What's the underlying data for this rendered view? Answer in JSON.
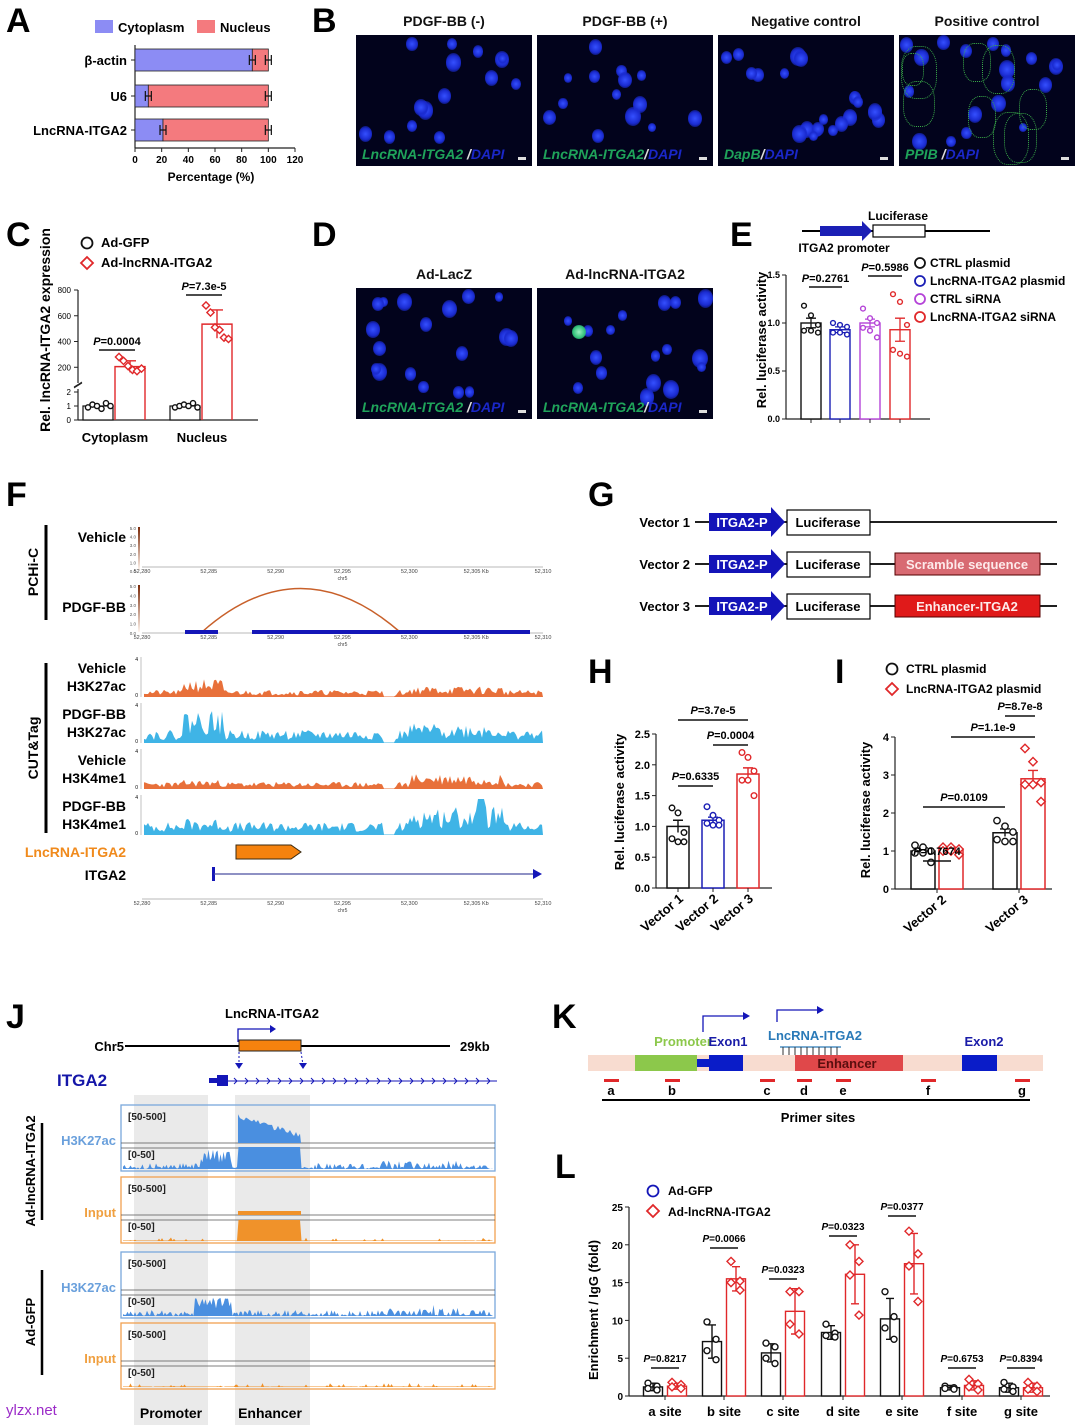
{
  "panels": {
    "A": {
      "label": "A"
    },
    "B": {
      "label": "B"
    },
    "C": {
      "label": "C"
    },
    "D": {
      "label": "D"
    },
    "E": {
      "label": "E"
    },
    "F": {
      "label": "F"
    },
    "G": {
      "label": "G"
    },
    "H": {
      "label": "H"
    },
    "I": {
      "label": "I"
    },
    "J": {
      "label": "J"
    },
    "K": {
      "label": "K"
    },
    "L": {
      "label": "L"
    }
  },
  "colors": {
    "cytoplasm": "#8c8cf4",
    "nucleus": "#f47a7e",
    "red": "#e0282a",
    "blue": "#1b1fb5",
    "purple": "#b544d8",
    "orange_track": "#e8703a",
    "cyan_track": "#3fb4e6",
    "lnc_orange": "#f08a1c",
    "itga2_blue": "#0f1fa8",
    "h3k27ac_j": "#4a8fe0",
    "input_j": "#f0922a",
    "promoter_green": "#8cc84b",
    "enhancer_red": "#e0484a",
    "k_bg": "#f8dcd0"
  },
  "B": {
    "images": [
      {
        "title": "PDGF-BB (-)",
        "probe": "LncRNA-ITGA2",
        "sep": " /",
        "stain": "DAPI"
      },
      {
        "title": "PDGF-BB (+)",
        "probe": "LncRNA-ITGA2",
        "sep": "/",
        "stain": "DAPI"
      },
      {
        "title": "Negative control",
        "probe": "DapB",
        "sep": "/",
        "stain": "DAPI"
      },
      {
        "title": "Positive control",
        "probe": "PPIB",
        "sep": " /",
        "stain": "DAPI"
      }
    ]
  },
  "D": {
    "images": [
      {
        "title": "Ad-LacZ",
        "probe": "LncRNA-ITGA2",
        "sep": " /",
        "stain": "DAPI"
      },
      {
        "title": "Ad-lncRNA-ITGA2",
        "probe": "LncRNA-ITGA2",
        "sep": "/",
        "stain": "DAPI"
      }
    ]
  },
  "E": {
    "construct": {
      "luciferase": "Luciferase",
      "promoter": "ITGA2 promoter"
    }
  },
  "F": {
    "pchic_group": "PCHi-C",
    "cuttag_group": "CUT&Tag",
    "pchic_tracks": [
      "Vehicle",
      "PDGF-BB"
    ],
    "colorbar_ticks": [
      "5.0",
      "4.0",
      "3.0",
      "2.0",
      "1.0",
      "0.0"
    ],
    "genomic_ticks": [
      "52,280",
      "52,285",
      "52,290",
      "52,295",
      "52,300",
      "52,305 Kb",
      "52,310"
    ],
    "chrom": "chr5",
    "tracks": [
      {
        "line1": "Vehicle",
        "line2": "H3K27ac",
        "ymax": "4",
        "ymin": "0"
      },
      {
        "line1": "PDGF-BB",
        "line2": "H3K27ac",
        "ymax": "4",
        "ymin": "0"
      },
      {
        "line1": "Vehicle",
        "line2": "H3K4me1",
        "ymax": "4",
        "ymin": "0"
      },
      {
        "line1": "PDGF-BB",
        "line2": "H3K4me1",
        "ymax": "4",
        "ymin": "0"
      }
    ],
    "lnc_label": "LncRNA-ITGA2",
    "gene_label": "ITGA2"
  },
  "G": {
    "vectors": [
      {
        "name": "Vector 1",
        "promoter": "ITGA2-P",
        "reporter": "Luciferase",
        "insert": ""
      },
      {
        "name": "Vector 2",
        "promoter": "ITGA2-P",
        "reporter": "Luciferase",
        "insert": "Scramble sequence"
      },
      {
        "name": "Vector 3",
        "promoter": "ITGA2-P",
        "reporter": "Luciferase",
        "insert": "Enhancer-ITGA2"
      }
    ]
  },
  "J": {
    "chrom": "Chr5",
    "span": "29kb",
    "lnc": "LncRNA-ITGA2",
    "gene": "ITGA2",
    "groups": [
      "Ad-lncRNA-ITGA2",
      "Ad-GFP"
    ],
    "track_names": [
      "H3K27ac",
      "Input"
    ],
    "ranges": [
      "[50-500]",
      "[0-50]"
    ],
    "regions": [
      "Promoter",
      "Enhancer"
    ]
  },
  "K": {
    "promoter": "Promoter",
    "exon1": "Exon1",
    "lnc": "LncRNA-ITGA2",
    "enhancer": "Enhancer",
    "exon2": "Exon2",
    "sites": [
      "a",
      "b",
      "c",
      "d",
      "e",
      "f",
      "g"
    ],
    "primer_label": "Primer sites"
  },
  "watermark": "ylzx.net",
  "chart_data": [
    {
      "id": "A",
      "type": "bar",
      "orientation": "horizontal",
      "stacked": true,
      "categories": [
        "β-actin",
        "U6",
        "LncRNA-ITGA2"
      ],
      "series": [
        {
          "name": "Cytoplasm",
          "values": [
            88,
            10,
            21
          ]
        },
        {
          "name": "Nucleus",
          "values": [
            12,
            90,
            79
          ]
        }
      ],
      "xlabel": "Percentage (%)",
      "xlim": [
        0,
        120
      ],
      "xticks": [
        "0",
        "20",
        "40",
        "60",
        "80",
        "100",
        "120"
      ],
      "legend": "top"
    },
    {
      "id": "C",
      "type": "bar",
      "categories": [
        "Cytoplasm",
        "Nucleus"
      ],
      "series": [
        {
          "name": "Ad-GFP",
          "values": [
            1.0,
            1.0
          ],
          "points": [
            [
              0.9,
              1.1,
              1.0,
              0.8,
              1.2,
              1.0
            ],
            [
              0.9,
              1.0,
              1.1,
              1.0,
              1.2,
              0.9
            ]
          ]
        },
        {
          "name": "Ad-lncRNA-ITGA2",
          "values": [
            205,
            535
          ],
          "sd": [
            45,
            110
          ],
          "points": [
            [
              280,
              250,
              210,
              180,
              170,
              190
            ],
            [
              680,
              625,
              510,
              490,
              430,
              420
            ]
          ]
        }
      ],
      "ylabel": "Rel. lncRNA-ITGA2 expression",
      "yticks_lower": [
        "0",
        "1",
        "2"
      ],
      "yticks_upper": [
        "200",
        "400",
        "600",
        "800"
      ],
      "ylim": [
        0,
        800
      ],
      "axis_break": true,
      "annotations": [
        "P=0.0004",
        "P=7.3e-5"
      ],
      "legend": "top-left"
    },
    {
      "id": "E",
      "type": "bar",
      "categories": [
        "CTRL plasmid",
        "LncRNA-ITGA2 plasmid",
        "CTRL siRNA",
        "LncRNA-ITGA2 siRNA"
      ],
      "values": [
        1.0,
        0.93,
        1.0,
        0.93
      ],
      "sem": [
        0.05,
        0.03,
        0.04,
        0.12
      ],
      "points": [
        [
          1.18,
          1.08,
          0.98,
          0.92,
          0.92,
          0.9
        ],
        [
          1.0,
          0.98,
          0.96,
          0.9,
          0.9,
          0.88
        ],
        [
          1.15,
          1.05,
          1.0,
          0.95,
          0.92,
          0.85
        ],
        [
          1.3,
          1.22,
          0.98,
          0.72,
          0.68,
          0.65
        ]
      ],
      "series_colors": [
        "#111111",
        "#1b1fb5",
        "#b544d8",
        "#e0282a"
      ],
      "ylabel": "Rel. luciferase activity",
      "ylim": [
        0,
        1.5
      ],
      "yticks": [
        "0.0",
        "0.5",
        "1.0",
        "1.5"
      ],
      "annotations": [
        "P=0.2761",
        "P=0.5986"
      ],
      "legend": "right"
    },
    {
      "id": "H",
      "type": "bar",
      "categories": [
        "Vector 1",
        "Vector 2",
        "Vector 3"
      ],
      "values": [
        1.0,
        1.1,
        1.85
      ],
      "sem": [
        0.1,
        0.05,
        0.1
      ],
      "points": [
        [
          1.3,
          1.22,
          0.9,
          0.8,
          0.75,
          0.75
        ],
        [
          1.32,
          1.18,
          1.1,
          1.05,
          1.02,
          1.02
        ],
        [
          2.2,
          2.12,
          1.9,
          1.75,
          1.75,
          1.5
        ]
      ],
      "ylabel": "Rel. luciferase activity",
      "ylim": [
        0,
        2.5
      ],
      "yticks": [
        "0.0",
        "0.5",
        "1.0",
        "1.5",
        "2.0",
        "2.5"
      ],
      "annotations": [
        "P=0.6335",
        "P=0.0004",
        "P=3.7e-5"
      ]
    },
    {
      "id": "I",
      "type": "bar",
      "categories": [
        "Vector 2",
        "Vector 3"
      ],
      "series": [
        {
          "name": "CTRL plasmid",
          "values": [
            1.0,
            1.48
          ],
          "sem": [
            0.08,
            0.1
          ],
          "points": [
            [
              1.15,
              1.1,
              1.0,
              0.95,
              0.95,
              0.7
            ],
            [
              1.8,
              1.65,
              1.5,
              1.3,
              1.25,
              1.25
            ]
          ]
        },
        {
          "name": "LncRNA-ITGA2 plasmid",
          "values": [
            1.05,
            2.9
          ],
          "sem": [
            0.05,
            0.22
          ],
          "points": [
            [
              1.1,
              1.1,
              1.05,
              1.0,
              1.0,
              0.9
            ],
            [
              3.7,
              3.35,
              2.8,
              2.75,
              2.75,
              2.3
            ]
          ]
        }
      ],
      "ylabel": "Rel. luciferase activity",
      "ylim": [
        0,
        4
      ],
      "yticks": [
        "0",
        "1",
        "2",
        "3",
        "4"
      ],
      "annotations": [
        "P=0.7674",
        "P=0.0109",
        "P=1.1e-9",
        "P=8.7e-8"
      ],
      "legend": "top-left"
    },
    {
      "id": "L",
      "type": "bar",
      "categories": [
        "a site",
        "b site",
        "c site",
        "d site",
        "e site",
        "f site",
        "g site"
      ],
      "series": [
        {
          "name": "Ad-GFP",
          "values": [
            1.2,
            7.2,
            5.7,
            8.4,
            10.2,
            1.1,
            1.1
          ],
          "sd": [
            0.5,
            2.2,
            1.2,
            0.9,
            2.7,
            0.3,
            0.6
          ]
        },
        {
          "name": "Ad-lncRNA-ITGA2",
          "values": [
            1.3,
            15.5,
            11.2,
            16.1,
            17.5,
            1.4,
            1.1
          ],
          "sd": [
            0.4,
            1.6,
            3.0,
            3.9,
            4.0,
            0.6,
            0.6
          ]
        }
      ],
      "ylabel": "Enrichment / IgG (fold)",
      "ylim": [
        0,
        25
      ],
      "yticks": [
        "0",
        "5",
        "10",
        "15",
        "20",
        "25"
      ],
      "annotations": [
        "P=0.8217",
        "P=0.0066",
        "P=0.0323",
        "P=0.0323",
        "P=0.0377",
        "P=0.6753",
        "P=0.8394"
      ],
      "legend": "top-left"
    }
  ]
}
